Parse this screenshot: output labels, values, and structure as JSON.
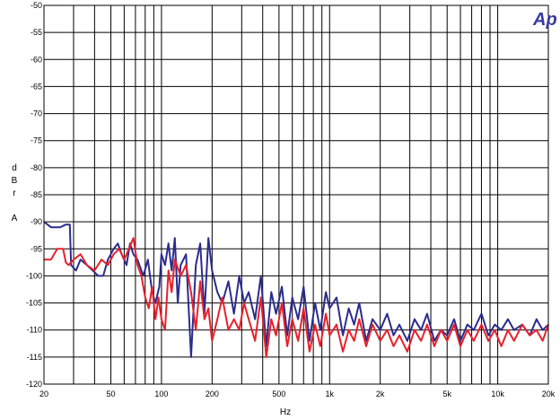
{
  "chart_data": {
    "type": "line",
    "title": "",
    "xlabel": "Hz",
    "ylabel": [
      "d",
      "B",
      "r",
      "",
      "A"
    ],
    "logo": "Ap",
    "x_scale": "log",
    "xlim": [
      20,
      20000
    ],
    "ylim": [
      -120,
      -50
    ],
    "grid": true,
    "x_ticks": [
      {
        "v": 20,
        "label": "20"
      },
      {
        "v": 50,
        "label": "50"
      },
      {
        "v": 100,
        "label": "100"
      },
      {
        "v": 200,
        "label": "200"
      },
      {
        "v": 500,
        "label": "500"
      },
      {
        "v": 1000,
        "label": "1k"
      },
      {
        "v": 2000,
        "label": "2k"
      },
      {
        "v": 5000,
        "label": "5k"
      },
      {
        "v": 10000,
        "label": "10k"
      },
      {
        "v": 20000,
        "label": "20k"
      }
    ],
    "y_ticks": [
      -50,
      -55,
      -60,
      -65,
      -70,
      -75,
      -80,
      -85,
      -90,
      -95,
      -100,
      -105,
      -110,
      -115,
      -120
    ],
    "colors": {
      "red": "#e8202a",
      "blue": "#2b2c8e",
      "grid": "#000000"
    },
    "series": [
      {
        "color": "#2b2c8e",
        "x": [
          20,
          22,
          25,
          27,
          28.5,
          29,
          31,
          33,
          36,
          39,
          42,
          45,
          48,
          52,
          55,
          58,
          62,
          65,
          68,
          72,
          78,
          83,
          88,
          92,
          97,
          100,
          105,
          110,
          115,
          120,
          125,
          130,
          140,
          150,
          160,
          170,
          180,
          190,
          200,
          215,
          230,
          250,
          270,
          290,
          310,
          330,
          360,
          390,
          420,
          450,
          480,
          520,
          560,
          600,
          650,
          700,
          760,
          820,
          880,
          950,
          1000,
          1100,
          1200,
          1300,
          1400,
          1500,
          1650,
          1800,
          2000,
          2200,
          2400,
          2600,
          2900,
          3200,
          3500,
          3800,
          4200,
          4600,
          5000,
          5500,
          6000,
          6600,
          7200,
          8000,
          8800,
          9600,
          10500,
          11500,
          12500,
          14000,
          15500,
          17000,
          18500,
          20000
        ],
        "y": [
          -90,
          -91,
          -91,
          -90.5,
          -90.5,
          -98,
          -99,
          -97,
          -98,
          -99,
          -100,
          -100,
          -97,
          -95,
          -94,
          -96,
          -98,
          -94,
          -96,
          -97,
          -100,
          -97,
          -103,
          -105,
          -102,
          -96,
          -98,
          -94,
          -99,
          -93,
          -105,
          -98,
          -96,
          -115,
          -98,
          -94,
          -107,
          -93,
          -99,
          -103,
          -105,
          -101,
          -107,
          -100,
          -105,
          -103,
          -108,
          -100,
          -113,
          -103,
          -107,
          -102,
          -111,
          -104,
          -108,
          -102,
          -112,
          -105,
          -110,
          -103,
          -106,
          -104,
          -111,
          -106,
          -109,
          -105,
          -112,
          -108,
          -110,
          -107,
          -111,
          -109,
          -112,
          -108,
          -110,
          -107,
          -112,
          -110,
          -111,
          -108,
          -112,
          -109,
          -110,
          -107,
          -111,
          -109,
          -110,
          -108,
          -110,
          -109,
          -111,
          -108,
          -110,
          -109
        ]
      },
      {
        "color": "#e8202a",
        "x": [
          20,
          22,
          24,
          26,
          27,
          28,
          30,
          33,
          36,
          40,
          44,
          48,
          52,
          56,
          60,
          64,
          68,
          72,
          76,
          80,
          84,
          88,
          92,
          96,
          100,
          105,
          110,
          115,
          120,
          130,
          140,
          150,
          160,
          170,
          180,
          190,
          200,
          215,
          230,
          250,
          270,
          290,
          310,
          330,
          360,
          390,
          420,
          450,
          480,
          520,
          560,
          600,
          650,
          700,
          760,
          820,
          880,
          950,
          1000,
          1100,
          1200,
          1300,
          1400,
          1500,
          1650,
          1800,
          2000,
          2200,
          2400,
          2600,
          2900,
          3200,
          3500,
          3800,
          4200,
          4600,
          5000,
          5500,
          6000,
          6600,
          7200,
          8000,
          8800,
          9600,
          10500,
          11500,
          12500,
          14000,
          15500,
          17000,
          18500,
          20000
        ],
        "y": [
          -97,
          -97,
          -95,
          -95,
          -97.5,
          -98,
          -97,
          -96,
          -98,
          -99,
          -97,
          -98,
          -96,
          -95,
          -97,
          -95,
          -93,
          -98,
          -100,
          -104,
          -106,
          -102,
          -108,
          -104,
          -108,
          -110,
          -99,
          -103,
          -97,
          -100,
          -98,
          -103,
          -110,
          -101,
          -108,
          -106,
          -112,
          -108,
          -104,
          -110,
          -108,
          -110,
          -105,
          -108,
          -112,
          -104,
          -115,
          -108,
          -111,
          -105,
          -113,
          -108,
          -112,
          -106,
          -114,
          -109,
          -113,
          -107,
          -111,
          -109,
          -114,
          -110,
          -112,
          -108,
          -113,
          -109,
          -112,
          -110,
          -113,
          -111,
          -114,
          -110,
          -112,
          -109,
          -113,
          -110,
          -112,
          -109,
          -113,
          -110,
          -112,
          -109,
          -112,
          -110,
          -113,
          -110,
          -112,
          -109,
          -111,
          -110,
          -112,
          -109
        ]
      }
    ]
  }
}
